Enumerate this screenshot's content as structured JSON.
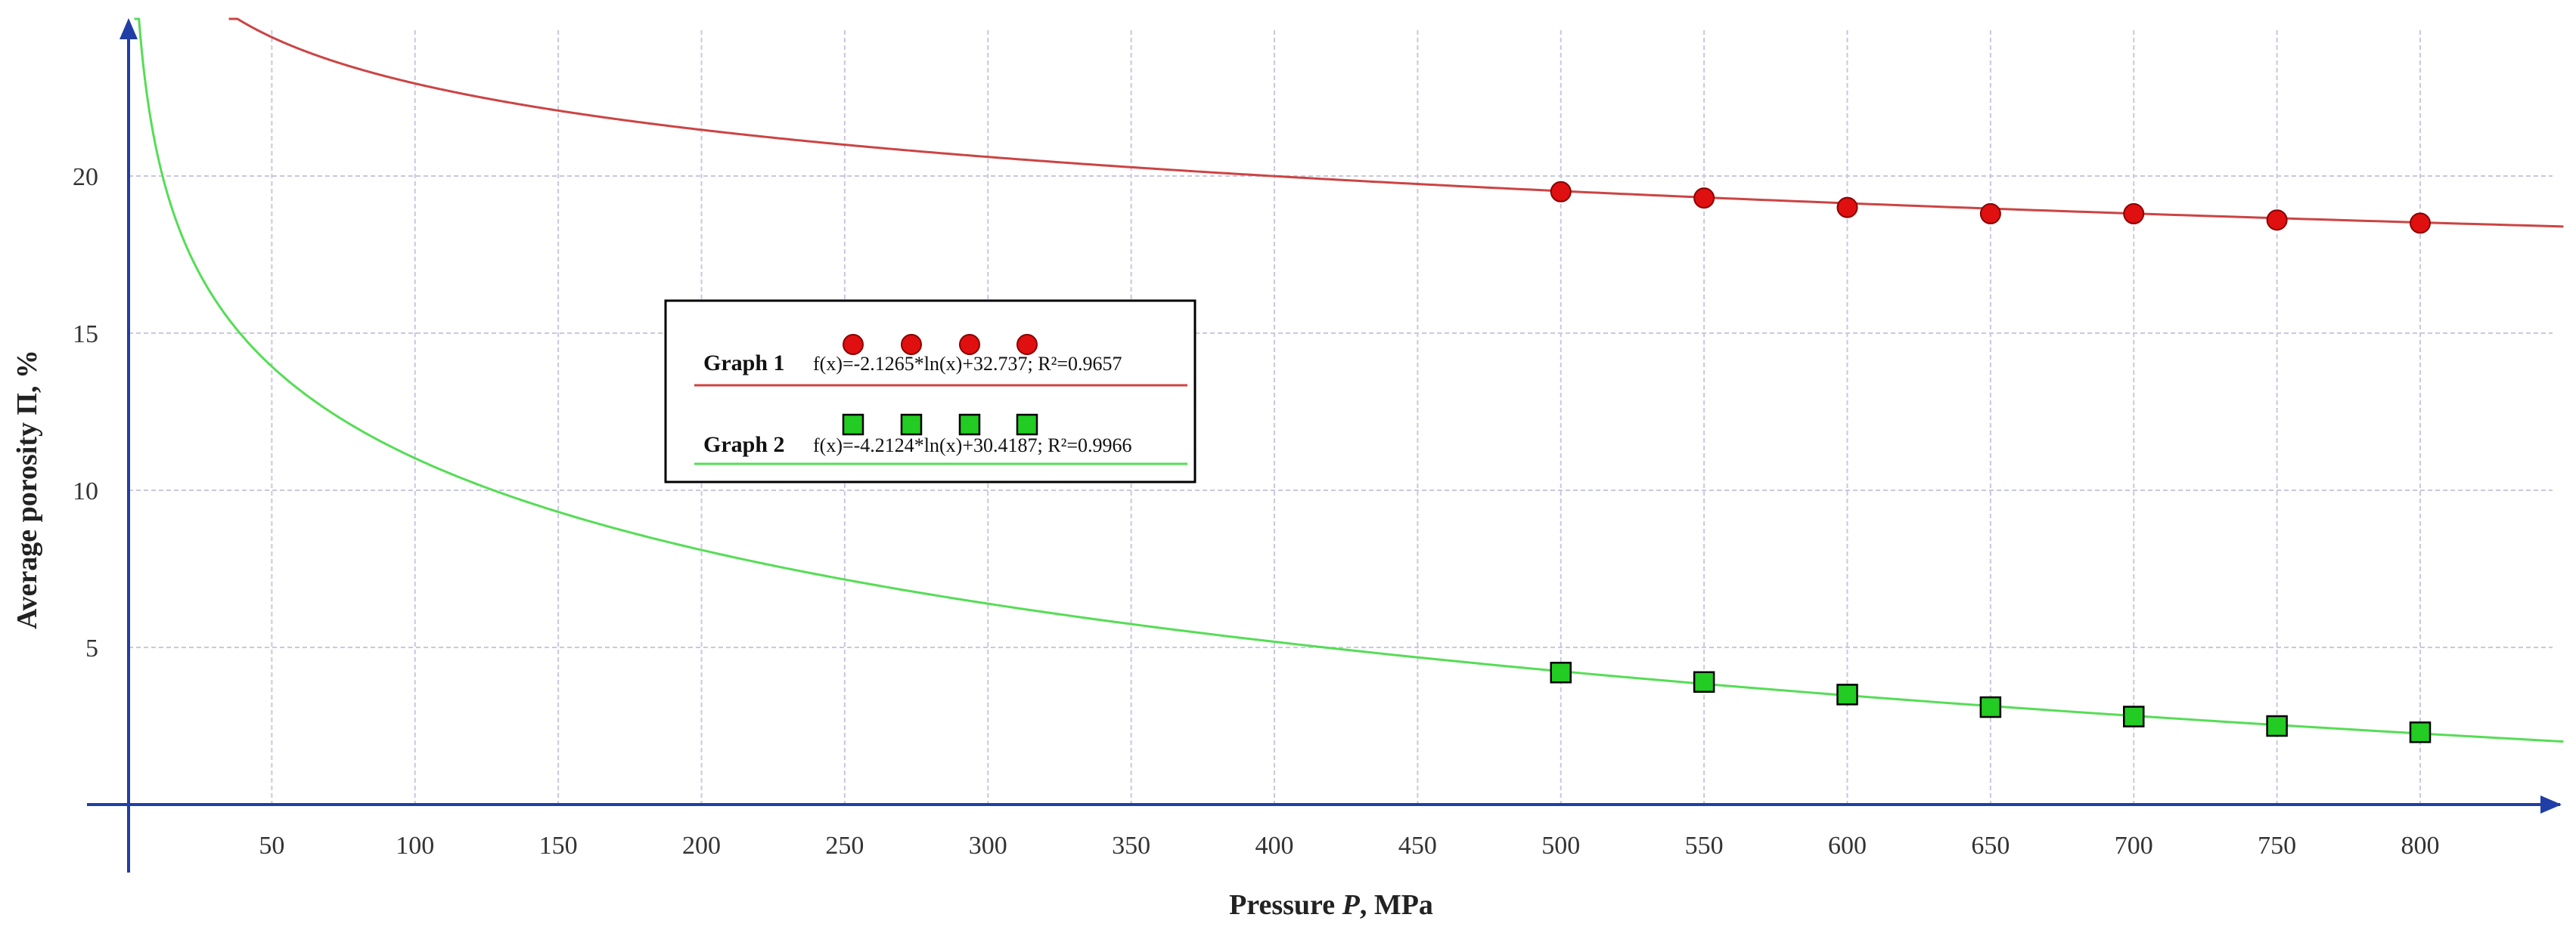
{
  "chart_data": {
    "type": "scatter",
    "title": "",
    "xlabel_main": "Pressure ",
    "xlabel_italic": "P",
    "xlabel_unit": ", MPa",
    "ylabel": "Average porosity Π, %",
    "xlim": [
      0,
      850
    ],
    "ylim": [
      0,
      25
    ],
    "x_ticks": [
      50,
      100,
      150,
      200,
      250,
      300,
      350,
      400,
      450,
      500,
      550,
      600,
      650,
      700,
      750,
      800
    ],
    "y_ticks": [
      5,
      10,
      15,
      20
    ],
    "grid": true,
    "axis_color": "#1f3fa6",
    "grid_color": "#c8c8e0",
    "series": [
      {
        "name": "Graph 1",
        "formula": "f(x)=-2.1265*ln(x)+32.737; R²=0.9657",
        "fit": {
          "type": "log",
          "a": -2.1265,
          "b": 32.737,
          "x_from": 35,
          "x_to": 850
        },
        "marker": "circle",
        "color": "#e01010",
        "line_color": "#cc4444",
        "points": [
          {
            "x": 500,
            "y": 19.5
          },
          {
            "x": 550,
            "y": 19.3
          },
          {
            "x": 600,
            "y": 19.0
          },
          {
            "x": 650,
            "y": 18.8
          },
          {
            "x": 700,
            "y": 18.8
          },
          {
            "x": 750,
            "y": 18.6
          },
          {
            "x": 800,
            "y": 18.5
          }
        ]
      },
      {
        "name": "Graph 2",
        "formula": "f(x)=-4.2124*ln(x)+30.4187; R²=0.9966",
        "fit": {
          "type": "log",
          "a": -4.2124,
          "b": 30.4187,
          "x_from": 2,
          "x_to": 850
        },
        "marker": "square",
        "color": "#22cc22",
        "line_color": "#55dd55",
        "points": [
          {
            "x": 500,
            "y": 4.2
          },
          {
            "x": 550,
            "y": 3.9
          },
          {
            "x": 600,
            "y": 3.5
          },
          {
            "x": 650,
            "y": 3.1
          },
          {
            "x": 700,
            "y": 2.8
          },
          {
            "x": 750,
            "y": 2.5
          },
          {
            "x": 800,
            "y": 2.3
          }
        ]
      }
    ],
    "legend_position": "center-left"
  }
}
